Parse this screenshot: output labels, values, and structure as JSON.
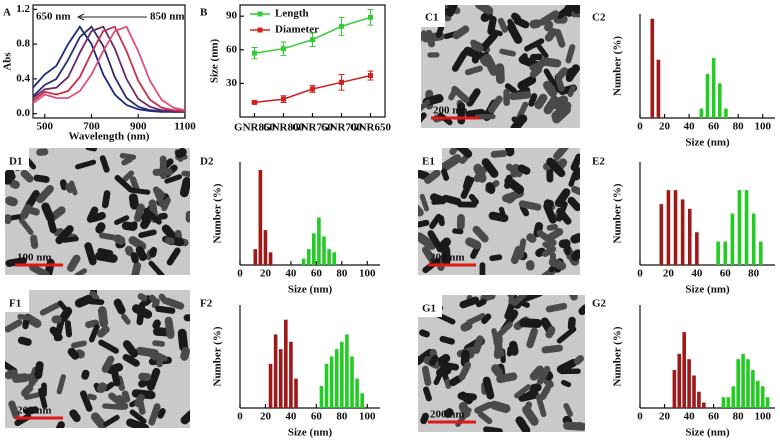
{
  "chart_data": [
    {
      "type": "line",
      "label": "A",
      "xlabel": "Wavelength (nm)",
      "ylabel": "Abs",
      "annotations": [
        "650 nm",
        "850 nm"
      ],
      "x": [
        450,
        500,
        550,
        600,
        650,
        700,
        750,
        800,
        850,
        900,
        950,
        1000,
        1050,
        1100
      ],
      "xlim": [
        450,
        1100
      ],
      "xticks": [
        500,
        700,
        900,
        1100
      ],
      "ylim": [
        -0.05,
        1.25
      ],
      "yticks": [
        {
          "value": 0,
          "label": "0.0"
        },
        0.4,
        0.8,
        1.2
      ],
      "series": [
        {
          "color": "#1c2a80",
          "values": [
            0.3,
            0.45,
            0.55,
            0.8,
            1.0,
            0.8,
            0.45,
            0.22,
            0.1,
            0.05,
            0.03,
            0.02,
            0.02,
            0.02
          ]
        },
        {
          "color": "#2e2e70",
          "values": [
            0.2,
            0.33,
            0.4,
            0.62,
            0.88,
            1.0,
            0.78,
            0.42,
            0.18,
            0.08,
            0.04,
            0.03,
            0.02,
            0.02
          ]
        },
        {
          "color": "#6a2a6a",
          "values": [
            0.18,
            0.28,
            0.3,
            0.42,
            0.7,
            0.95,
            1.0,
            0.75,
            0.4,
            0.17,
            0.08,
            0.04,
            0.03,
            0.02
          ]
        },
        {
          "color": "#c8304a",
          "values": [
            0.15,
            0.25,
            0.22,
            0.26,
            0.42,
            0.7,
            0.95,
            1.0,
            0.72,
            0.38,
            0.16,
            0.07,
            0.04,
            0.03
          ]
        },
        {
          "color": "#e0507a",
          "values": [
            0.12,
            0.22,
            0.18,
            0.18,
            0.26,
            0.45,
            0.72,
            0.95,
            1.0,
            0.72,
            0.38,
            0.16,
            0.07,
            0.04
          ]
        }
      ]
    },
    {
      "type": "line",
      "label": "B",
      "ylabel": "Size (nm)",
      "legend": "upper left",
      "categories": [
        "GNR850",
        "GNR800",
        "GNR750",
        "GNR700",
        "GNR650"
      ],
      "ylim": [
        0,
        100
      ],
      "yticks": [
        30,
        60,
        90
      ],
      "series": [
        {
          "name": "Length",
          "color": "#33cc33",
          "values": [
            57,
            61,
            69,
            81,
            89
          ],
          "errors": [
            5,
            6,
            6,
            8,
            7
          ]
        },
        {
          "name": "Diameter",
          "color": "#d02020",
          "values": [
            13,
            16,
            25,
            31,
            37
          ],
          "errors": [
            1,
            3,
            3,
            7,
            4
          ]
        }
      ]
    },
    {
      "type": "image",
      "label": "C1",
      "scale_bar": "200 nm"
    },
    {
      "type": "bar",
      "label": "C2",
      "xlabel": "Size (nm)",
      "ylabel": "Number (%)",
      "xlim": [
        0,
        110
      ],
      "xticks": [
        0,
        20,
        40,
        60,
        80,
        100
      ],
      "ylim": [
        0,
        66
      ],
      "series": [
        {
          "color": "#a01818",
          "x": [
            10,
            15
          ],
          "values": [
            63,
            37
          ]
        },
        {
          "color": "#22cc22",
          "x": [
            50,
            55,
            60,
            65,
            70
          ],
          "values": [
            6,
            28,
            38,
            22,
            6
          ]
        }
      ]
    },
    {
      "type": "image",
      "label": "D1",
      "scale_bar": "100 nm"
    },
    {
      "type": "bar",
      "label": "D2",
      "xlabel": "Size (nm)",
      "ylabel": "Number (%)",
      "xlim": [
        0,
        110
      ],
      "xticks": [
        0,
        20,
        40,
        60,
        80,
        100
      ],
      "ylim": [
        0,
        65
      ],
      "series": [
        {
          "color": "#a01818",
          "x": [
            12,
            16,
            20,
            24
          ],
          "values": [
            10,
            60,
            22,
            8
          ]
        },
        {
          "color": "#22cc22",
          "x": [
            50,
            54,
            58,
            62,
            66,
            70,
            74
          ],
          "values": [
            4,
            10,
            20,
            30,
            18,
            10,
            8
          ]
        }
      ]
    },
    {
      "type": "image",
      "label": "E1",
      "scale_bar": "200 nm"
    },
    {
      "type": "bar",
      "label": "E2",
      "xlabel": "Size (nm)",
      "ylabel": "Number (%)",
      "xlim": [
        0,
        95
      ],
      "xticks": [
        0,
        20,
        40,
        60,
        80
      ],
      "ylim": [
        0,
        22
      ],
      "series": [
        {
          "color": "#a01818",
          "x": [
            15,
            20,
            25,
            30,
            35,
            40
          ],
          "values": [
            13,
            16,
            16,
            14,
            12,
            7
          ]
        },
        {
          "color": "#22cc22",
          "x": [
            55,
            60,
            65,
            70,
            75,
            80,
            85
          ],
          "values": [
            5,
            5,
            11,
            16,
            16,
            11,
            5
          ]
        }
      ]
    },
    {
      "type": "image",
      "label": "F1",
      "scale_bar": "200 nm"
    },
    {
      "type": "bar",
      "label": "F2",
      "xlabel": "Size (nm)",
      "ylabel": "Number (%)",
      "xlim": [
        0,
        110
      ],
      "xticks": [
        0,
        20,
        40,
        60,
        80,
        100
      ],
      "ylim": [
        0,
        14
      ],
      "series": [
        {
          "color": "#a01818",
          "x": [
            24,
            28,
            32,
            36,
            40,
            44
          ],
          "values": [
            6,
            10,
            8,
            12,
            9,
            4
          ]
        },
        {
          "color": "#22cc22",
          "x": [
            64,
            68,
            72,
            76,
            80,
            84,
            88,
            92,
            96
          ],
          "values": [
            3,
            6,
            7,
            8,
            9,
            10,
            7,
            4,
            2
          ]
        }
      ]
    },
    {
      "type": "image",
      "label": "G1",
      "scale_bar": "200 nm"
    },
    {
      "type": "bar",
      "label": "G2",
      "xlabel": "Size (nm)",
      "ylabel": "Number (%)",
      "xlim": [
        0,
        110
      ],
      "xticks": [
        0,
        20,
        40,
        60,
        80,
        100
      ],
      "ylim": [
        0,
        19
      ],
      "series": [
        {
          "color": "#a01818",
          "x": [
            28,
            32,
            36,
            40,
            44,
            48,
            52
          ],
          "values": [
            7,
            10,
            14,
            9,
            6,
            3,
            1
          ]
        },
        {
          "color": "#22cc22",
          "x": [
            68,
            72,
            76,
            80,
            84,
            88,
            92,
            96,
            100,
            104
          ],
          "values": [
            2,
            2,
            4,
            9,
            10,
            9,
            7,
            5,
            4,
            2
          ]
        }
      ]
    }
  ]
}
